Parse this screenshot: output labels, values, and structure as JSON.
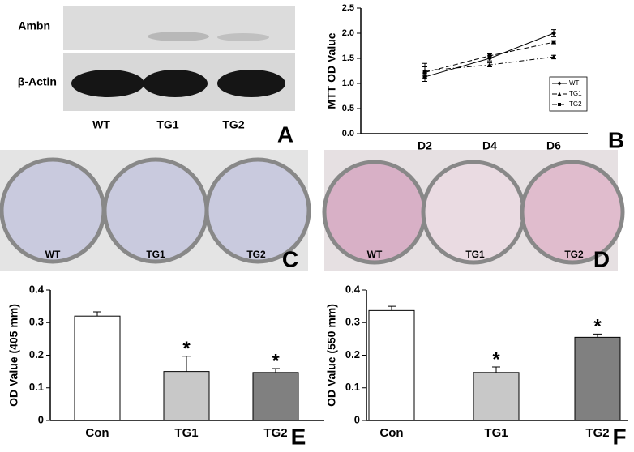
{
  "blot": {
    "rows": [
      "Ambn",
      "β-Actin"
    ],
    "lanes": [
      "WT",
      "TG1",
      "TG2"
    ],
    "letter": "A"
  },
  "plate_c": {
    "wells": [
      "WT",
      "TG1",
      "TG2"
    ],
    "letter": "C"
  },
  "plate_d": {
    "wells": [
      "WT",
      "TG1",
      "TG2"
    ],
    "letter": "D"
  },
  "chart_data": [
    {
      "type": "line",
      "letter": "B",
      "y_label": "MTT OD Value",
      "categories": [
        "D2",
        "D4",
        "D6"
      ],
      "series": [
        {
          "name": "WT",
          "color": "#000000",
          "marker": "diamond",
          "line_style": "solid",
          "values": [
            1.13,
            1.5,
            2.0
          ],
          "errors": [
            0.03,
            0.05,
            0.07
          ]
        },
        {
          "name": "TG1",
          "color": "#000000",
          "marker": "triangle",
          "line_style": "dashdot",
          "values": [
            1.25,
            1.37,
            1.53
          ],
          "errors": [
            0.08,
            0.04,
            0.03
          ]
        },
        {
          "name": "TG2",
          "color": "#000000",
          "marker": "square",
          "line_style": "dashed",
          "values": [
            1.22,
            1.55,
            1.82
          ],
          "errors": [
            0.18,
            0.04,
            0.03
          ]
        }
      ],
      "ylim": [
        0,
        2.5
      ],
      "yticks": [
        {
          "value": 0,
          "label": "0.0"
        },
        0.5,
        {
          "value": 1,
          "label": "1.0"
        },
        1.5,
        {
          "value": 2,
          "label": "2.0"
        },
        2.5
      ],
      "legend": "right"
    },
    {
      "type": "bar",
      "letter": "E",
      "y_label": "OD Value (405 mm)",
      "categories": [
        "Con",
        "TG1",
        "TG2"
      ],
      "values": [
        0.32,
        0.15,
        0.147
      ],
      "errors": [
        0.013,
        0.047,
        0.012
      ],
      "colors": [
        "#ffffff",
        "#c8c8c8",
        "#808080"
      ],
      "significance": [
        null,
        "*",
        "*"
      ],
      "ylim": [
        0,
        0.4
      ],
      "yticks": [
        0,
        0.1,
        0.2,
        0.3,
        0.4
      ]
    },
    {
      "type": "bar",
      "letter": "F",
      "y_label": "OD Value (550 mm)",
      "categories": [
        "Con",
        "TG1",
        "TG2"
      ],
      "values": [
        0.337,
        0.147,
        0.255
      ],
      "errors": [
        0.013,
        0.017,
        0.01
      ],
      "colors": [
        "#ffffff",
        "#c8c8c8",
        "#808080"
      ],
      "significance": [
        null,
        "*",
        "*"
      ],
      "ylim": [
        0,
        0.4
      ],
      "yticks": [
        0,
        0.1,
        0.2,
        0.3,
        0.4
      ]
    }
  ]
}
